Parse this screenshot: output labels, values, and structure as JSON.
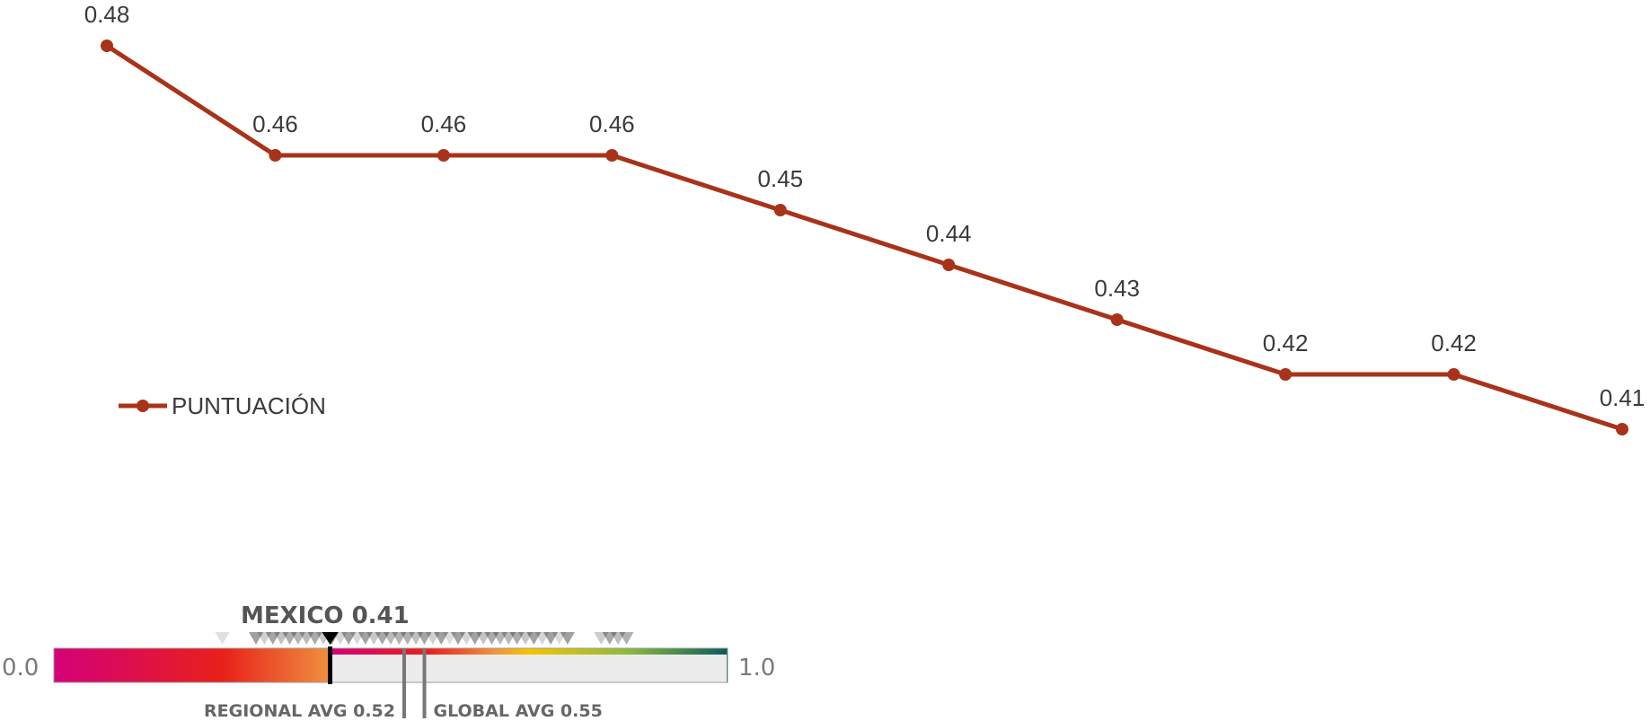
{
  "chart_data": [
    {
      "type": "line",
      "x": [
        "1",
        "2",
        "3",
        "4",
        "5",
        "6",
        "7",
        "8",
        "9",
        "10"
      ],
      "series": [
        {
          "name": "PUNTUACIÓN",
          "values": [
            0.48,
            0.46,
            0.46,
            0.46,
            0.45,
            0.44,
            0.43,
            0.42,
            0.42,
            0.41
          ],
          "labels": [
            "0.48",
            "0.46",
            "0.46",
            "0.46",
            "0.45",
            "0.44",
            "0.43",
            "0.42",
            "0.42",
            "0.41"
          ],
          "color": "#a8331a"
        }
      ],
      "ylim": [
        0.41,
        0.48
      ],
      "grid": false,
      "axes_visible": false,
      "legend": "left"
    }
  ],
  "scale": {
    "title": "MEXICO 0.41",
    "min_label": "0.0",
    "max_label": "1.0",
    "min": 0.0,
    "max": 1.0,
    "value": 0.41,
    "regional_avg": 0.52,
    "regional_label": "REGIONAL AVG 0.52",
    "global_avg": 0.55,
    "global_label": "GLOBAL AVG 0.55",
    "colors": [
      "#d4007a",
      "#e8201a",
      "#f09040",
      "#f5c400",
      "#8cba3c",
      "#0a5a5a"
    ]
  }
}
